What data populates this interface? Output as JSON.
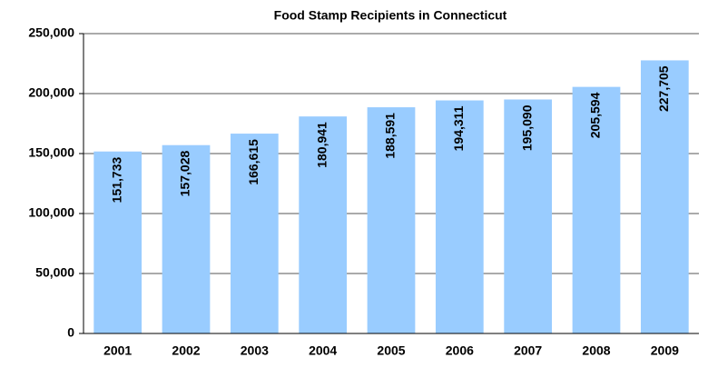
{
  "chart_data": {
    "type": "bar",
    "title": "Food Stamp Recipients in Connecticut",
    "categories": [
      "2001",
      "2002",
      "2003",
      "2004",
      "2005",
      "2006",
      "2007",
      "2008",
      "2009"
    ],
    "values": [
      151733,
      157028,
      166615,
      180941,
      188591,
      194311,
      195090,
      205594,
      227705
    ],
    "value_labels": [
      "151,733",
      "157,028",
      "166,615",
      "180,941",
      "188,591",
      "194,311",
      "195,090",
      "205,594",
      "227,705"
    ],
    "color": "#99ccff",
    "ylim": [
      0,
      250000
    ],
    "yticks": [
      0,
      {
        "value": 50000,
        "label": "50,000"
      },
      {
        "value": 100000,
        "label": "100,000"
      },
      {
        "value": 150000,
        "label": "150,000"
      },
      {
        "value": 200000,
        "label": "200,000"
      },
      {
        "value": 250000,
        "label": "250,000"
      }
    ],
    "grid": true
  }
}
